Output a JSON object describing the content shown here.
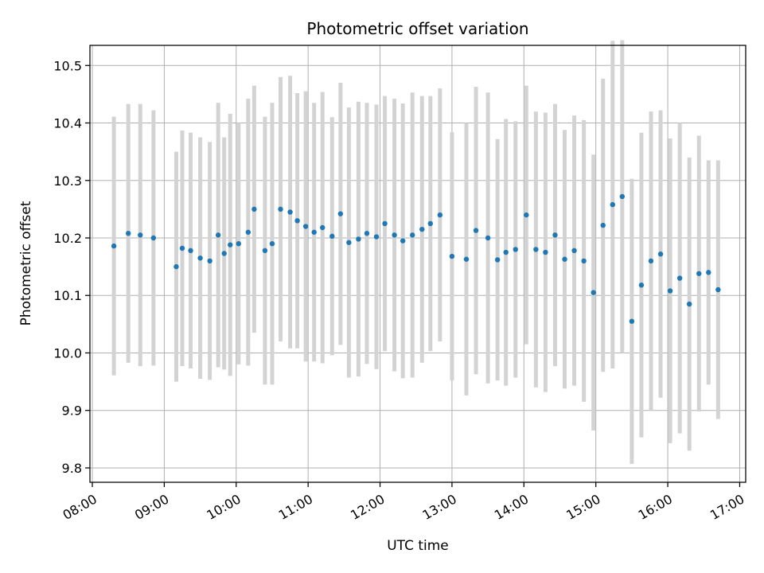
{
  "chart_data": {
    "type": "scatter",
    "title": "Photometric offset variation",
    "xlabel": "UTC time",
    "ylabel": "Photometric offset",
    "x_tick_labels": [
      "08:00",
      "09:00",
      "10:00",
      "11:00",
      "12:00",
      "13:00",
      "14:00",
      "15:00",
      "16:00",
      "17:00"
    ],
    "y_tick_labels": [
      "9.8",
      "9.9",
      "10.0",
      "10.1",
      "10.2",
      "10.3",
      "10.4",
      "10.5"
    ],
    "xlim": [
      "07:58",
      "17:05"
    ],
    "ylim": [
      9.775,
      10.535
    ],
    "grid": true,
    "colors": {
      "point": "#1f77b4",
      "errorbar": "#d3d3d3",
      "grid": "#b0b0b0",
      "axis": "#000000"
    },
    "series": [
      {
        "x": [
          "08:18",
          "08:30",
          "08:40",
          "08:51",
          "09:10",
          "09:15",
          "09:22",
          "09:30",
          "09:38",
          "09:45",
          "09:50",
          "09:55",
          "10:02",
          "10:10",
          "10:15",
          "10:24",
          "10:30",
          "10:37",
          "10:45",
          "10:51",
          "10:58",
          "11:05",
          "11:12",
          "11:20",
          "11:27",
          "11:34",
          "11:42",
          "11:49",
          "11:57",
          "12:04",
          "12:12",
          "12:19",
          "12:27",
          "12:35",
          "12:42",
          "12:50",
          "13:00",
          "13:12",
          "13:20",
          "13:30",
          "13:38",
          "13:45",
          "13:53",
          "14:02",
          "14:10",
          "14:18",
          "14:26",
          "14:34",
          "14:42",
          "14:50",
          "14:58",
          "15:06",
          "15:14",
          "15:22",
          "15:30",
          "15:38",
          "15:46",
          "15:54",
          "16:02",
          "16:10",
          "16:18",
          "16:26",
          "16:34",
          "16:42"
        ],
        "y": [
          10.186,
          10.208,
          10.205,
          10.2,
          10.15,
          10.182,
          10.178,
          10.165,
          10.16,
          10.205,
          10.173,
          10.188,
          10.19,
          10.21,
          10.25,
          10.178,
          10.19,
          10.25,
          10.245,
          10.23,
          10.22,
          10.21,
          10.218,
          10.203,
          10.242,
          10.192,
          10.198,
          10.208,
          10.202,
          10.225,
          10.205,
          10.195,
          10.205,
          10.215,
          10.225,
          10.24,
          10.168,
          10.163,
          10.213,
          10.2,
          10.162,
          10.175,
          10.18,
          10.24,
          10.18,
          10.175,
          10.205,
          10.163,
          10.178,
          10.16,
          10.105,
          10.222,
          10.258,
          10.272,
          10.055,
          10.118,
          10.16,
          10.172,
          10.108,
          10.13,
          10.085,
          10.138,
          10.14,
          10.11
        ],
        "yerr": [
          0.225,
          0.225,
          0.228,
          0.222,
          0.2,
          0.205,
          0.205,
          0.21,
          0.207,
          0.23,
          0.202,
          0.228,
          0.21,
          0.232,
          0.215,
          0.233,
          0.245,
          0.23,
          0.237,
          0.222,
          0.235,
          0.225,
          0.236,
          0.207,
          0.228,
          0.235,
          0.239,
          0.227,
          0.23,
          0.222,
          0.237,
          0.239,
          0.248,
          0.232,
          0.222,
          0.22,
          0.216,
          0.237,
          0.25,
          0.253,
          0.21,
          0.232,
          0.223,
          0.225,
          0.24,
          0.243,
          0.228,
          0.225,
          0.235,
          0.245,
          0.24,
          0.255,
          0.285,
          0.272,
          0.248,
          0.265,
          0.26,
          0.25,
          0.265,
          0.27,
          0.255,
          0.24,
          0.195,
          0.225
        ]
      }
    ]
  }
}
